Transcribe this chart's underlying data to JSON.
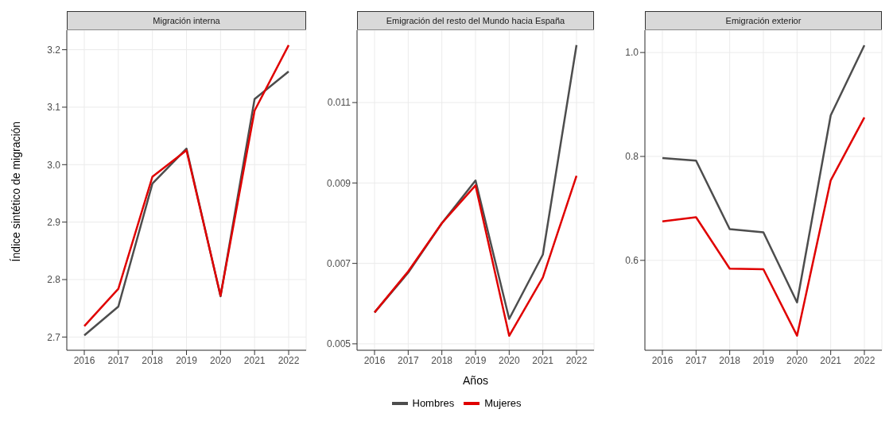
{
  "chart_data": [
    {
      "type": "line",
      "title": "Migración interna",
      "ylabel": "Índice sintético de migración",
      "categories": [
        "2016",
        "2017",
        "2018",
        "2019",
        "2020",
        "2021",
        "2022"
      ],
      "ylim": [
        2.677,
        3.234
      ],
      "yticks": [
        2.7,
        2.8,
        2.9,
        {
          "value": 3,
          "label": "3.0"
        },
        3.1,
        3.2
      ],
      "grid": true,
      "series": [
        {
          "color": "#4d4d4d",
          "values": [
            2.703,
            2.753,
            2.967,
            3.028,
            2.771,
            3.114,
            3.162
          ]
        },
        {
          "color": "#e00000",
          "values": [
            2.719,
            2.784,
            2.979,
            3.025,
            2.772,
            3.094,
            3.208
          ]
        }
      ]
    },
    {
      "type": "line",
      "title": "Emigración del resto del Mundo hacia España",
      "xlabel": "Años",
      "categories": [
        "2016",
        "2017",
        "2018",
        "2019",
        "2020",
        "2021",
        "2022"
      ],
      "ylim": [
        0.00484,
        0.0128
      ],
      "yticks": [
        0.005,
        0.007,
        0.009,
        0.011
      ],
      "grid": true,
      "legend": "bottom",
      "series": [
        {
          "name": "Hombres",
          "color": "#4d4d4d",
          "values": [
            0.00578,
            0.00677,
            0.008,
            0.00906,
            0.00562,
            0.00722,
            0.01243
          ]
        },
        {
          "name": "Mujeres",
          "color": "#e00000",
          "values": [
            0.00578,
            0.0068,
            0.008,
            0.00894,
            0.0052,
            0.00665,
            0.00918
          ]
        }
      ]
    },
    {
      "type": "line",
      "title": "Emigración exterior",
      "categories": [
        "2016",
        "2017",
        "2018",
        "2019",
        "2020",
        "2021",
        "2022"
      ],
      "ylim": [
        0.427,
        1.043
      ],
      "yticks": [
        0.6,
        0.8,
        {
          "value": 1,
          "label": "1.0"
        }
      ],
      "grid": true,
      "series": [
        {
          "color": "#4d4d4d",
          "values": [
            0.797,
            0.792,
            0.66,
            0.654,
            0.519,
            0.879,
            1.014
          ]
        },
        {
          "color": "#e00000",
          "values": [
            0.675,
            0.683,
            0.584,
            0.583,
            0.455,
            0.754,
            0.875
          ]
        }
      ]
    }
  ]
}
